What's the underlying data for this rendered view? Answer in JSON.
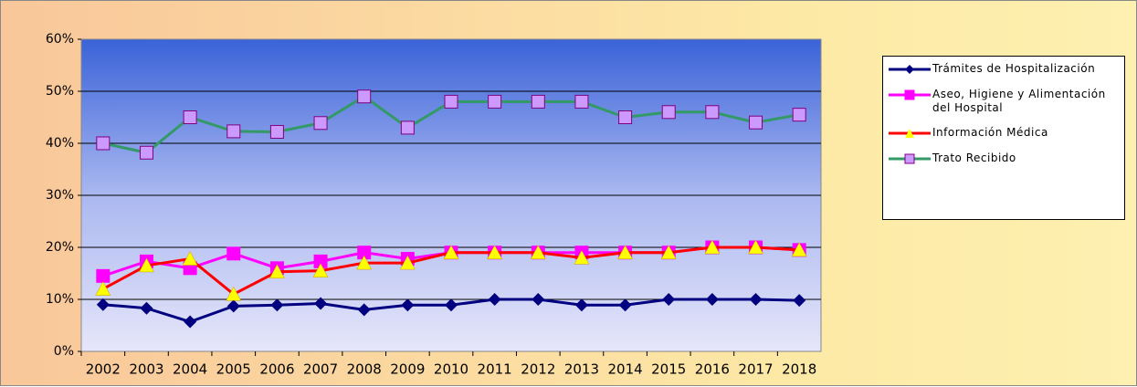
{
  "chart_data": {
    "type": "line",
    "categories": [
      "2002",
      "2003",
      "2004",
      "2005",
      "2006",
      "2007",
      "2008",
      "2009",
      "2010",
      "2011",
      "2012",
      "2013",
      "2014",
      "2015",
      "2016",
      "2017",
      "2018"
    ],
    "series": [
      {
        "name": "Trámites de Hospitalización",
        "color": "#000080",
        "marker": "diamond",
        "marker_color": "#000080",
        "values": [
          9,
          8.3,
          5.7,
          8.7,
          8.9,
          9.2,
          8,
          8.9,
          8.9,
          10,
          10,
          8.9,
          8.9,
          10,
          10,
          10,
          9.8
        ]
      },
      {
        "name": "Aseo, Higiene y Alimentación del Hospital",
        "color": "#ff00ff",
        "marker": "square",
        "marker_color": "#ff00ff",
        "values": [
          14.5,
          17.3,
          16,
          18.8,
          16,
          17.3,
          19,
          17.8,
          19,
          19,
          19,
          19,
          19,
          19,
          20,
          20,
          19.5
        ]
      },
      {
        "name": "Información Médica",
        "color": "#ff0000",
        "marker": "triangle",
        "marker_color": "#ffff00",
        "values": [
          12,
          16.5,
          17.8,
          11,
          15.3,
          15.5,
          17,
          17,
          19,
          19,
          19,
          18,
          19,
          19,
          20,
          20,
          19.5
        ]
      },
      {
        "name": "Trato Recibido",
        "color": "#339966",
        "marker": "square",
        "marker_color": "#cc99ff",
        "values": [
          40,
          38.2,
          45,
          42.3,
          42.2,
          43.9,
          49,
          43,
          48,
          48,
          48,
          48,
          45,
          46,
          46,
          44,
          45.5
        ]
      }
    ],
    "ylim": [
      0,
      60
    ],
    "yticks": [
      {
        "value": 0,
        "label": "0%"
      },
      {
        "value": 10,
        "label": "10%"
      },
      {
        "value": 20,
        "label": "20%"
      },
      {
        "value": 30,
        "label": "30%"
      },
      {
        "value": 40,
        "label": "40%"
      },
      {
        "value": 50,
        "label": "50%"
      },
      {
        "value": 60,
        "label": "60%"
      }
    ],
    "grid": true,
    "legend": "right"
  }
}
